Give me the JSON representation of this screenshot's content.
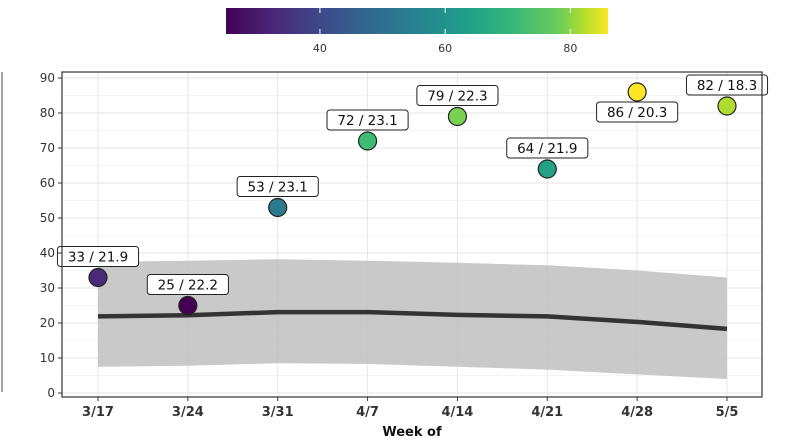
{
  "chart_data": {
    "type": "scatter",
    "title": "",
    "xlabel": "Week of",
    "ylabel": "",
    "categories": [
      "3/17",
      "3/24",
      "3/31",
      "4/7",
      "4/14",
      "4/21",
      "4/28",
      "5/5"
    ],
    "ylim": [
      0,
      90
    ],
    "yticks": [
      0,
      10,
      20,
      30,
      40,
      50,
      60,
      70,
      80,
      90
    ],
    "grid": true,
    "points": [
      {
        "x": "3/17",
        "y": 33,
        "label": "33 / 21.9"
      },
      {
        "x": "3/24",
        "y": 25,
        "label": "25 / 22.2"
      },
      {
        "x": "3/31",
        "y": 53,
        "label": "53 / 23.1"
      },
      {
        "x": "4/7",
        "y": 72,
        "label": "72 / 23.1"
      },
      {
        "x": "4/14",
        "y": 79,
        "label": "79 / 22.3"
      },
      {
        "x": "4/21",
        "y": 64,
        "label": "64 / 21.9"
      },
      {
        "x": "4/28",
        "y": 86,
        "label": "86 / 20.3"
      },
      {
        "x": "5/5",
        "y": 82,
        "label": "82 / 18.3"
      }
    ],
    "trend": {
      "y": [
        21.9,
        22.2,
        23.1,
        23.1,
        22.3,
        21.9,
        20.3,
        18.3
      ],
      "upper": [
        37.5,
        37.8,
        38.2,
        37.8,
        37.2,
        36.5,
        35.0,
        33.0
      ],
      "lower": [
        7.5,
        7.8,
        8.5,
        8.3,
        7.5,
        6.7,
        5.3,
        4.0
      ]
    },
    "colorbar": {
      "palette": "viridis",
      "range": [
        25,
        86
      ],
      "ticks": [
        40,
        60,
        80
      ],
      "position": "top"
    }
  }
}
